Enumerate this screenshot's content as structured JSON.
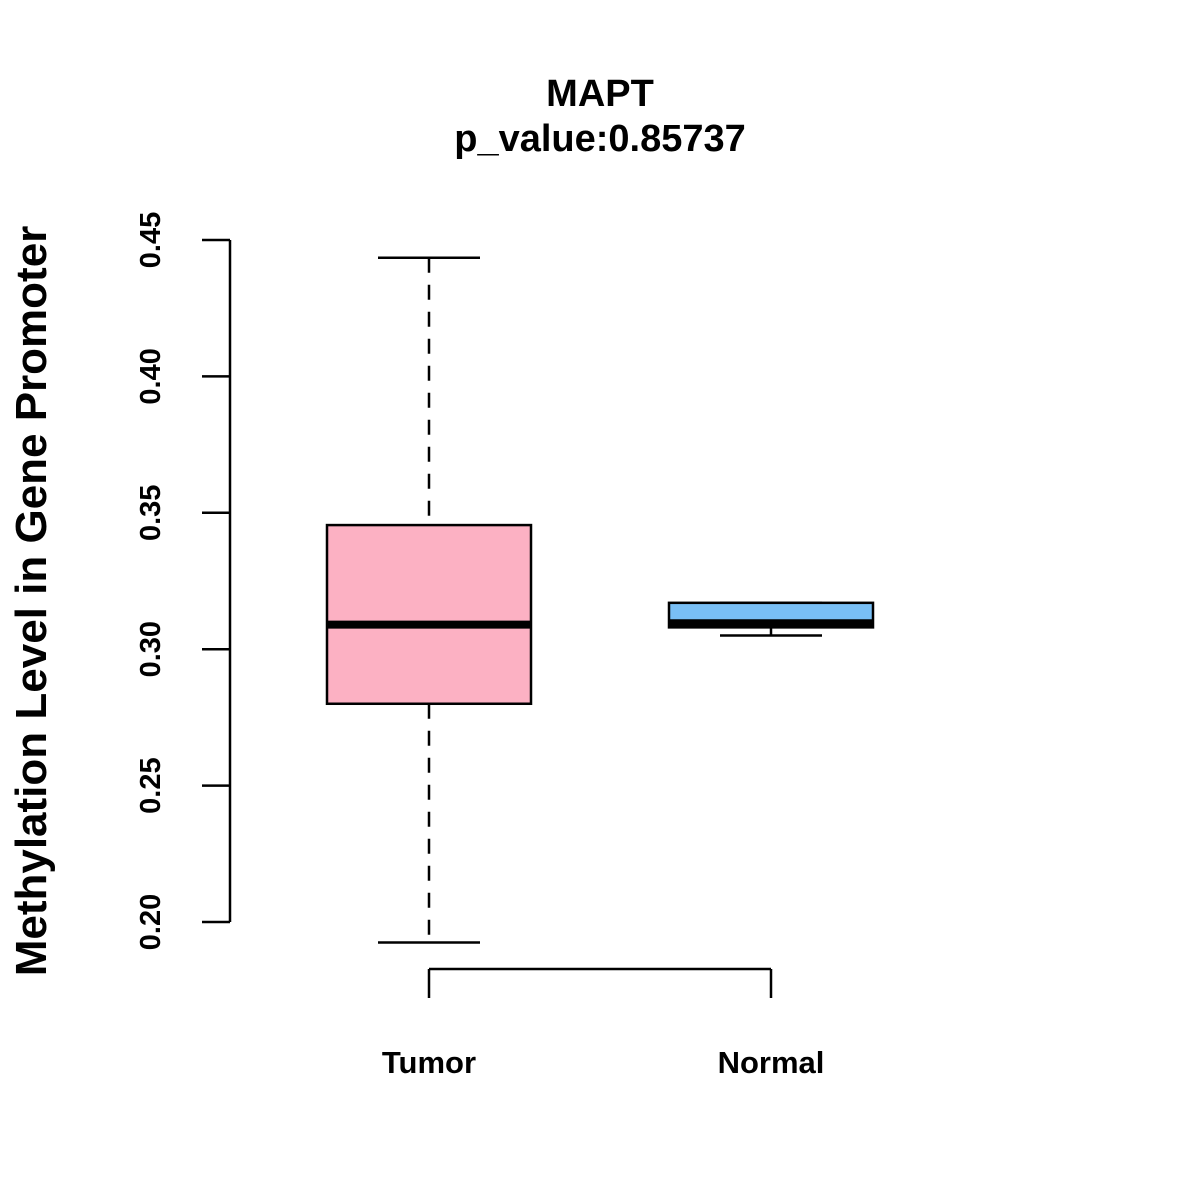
{
  "chart_data": {
    "type": "boxplot",
    "title": "MAPT",
    "subtitle": "p_value:0.85737",
    "xlabel": "",
    "ylabel": "Methylation Level in Gene Promoter",
    "ylim": [
      0.19,
      0.45
    ],
    "yticks": [
      "0.20",
      "0.25",
      "0.30",
      "0.35",
      "0.40",
      "0.45"
    ],
    "categories": [
      "Tumor",
      "Normal"
    ],
    "boxes": [
      {
        "category": "Tumor",
        "color": "#FCB1C3",
        "min": 0.1925,
        "q1": 0.28,
        "median": 0.309,
        "q3": 0.3455,
        "max": 0.4435
      },
      {
        "category": "Normal",
        "color": "#79BFF5",
        "min": 0.305,
        "q1": 0.308,
        "median": 0.3095,
        "q3": 0.317,
        "max": 0.317
      }
    ],
    "grid": false,
    "legend": "none"
  }
}
